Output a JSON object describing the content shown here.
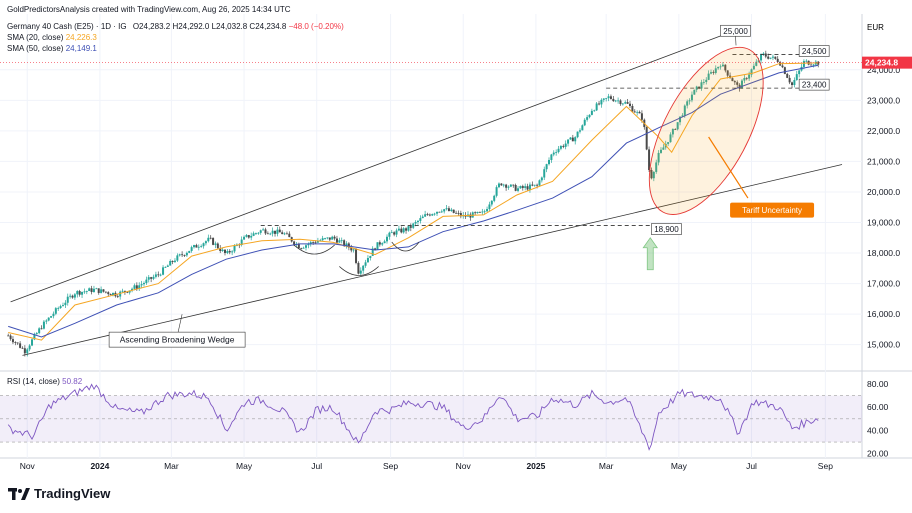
{
  "header": {
    "creator": "GoldPredictorsAnalysis created with TradingView.com, Aug 26, 2025 14:34 UTC",
    "instrument": "Germany 40 Cash (E25) · 1D · IG",
    "ohlc": {
      "o": "O24,283.2",
      "h": "H24,292.0",
      "l": "L24,032.8",
      "c": "C24,234.8",
      "chg": "−48.0 (−0.20%)"
    },
    "sma20_label": "SMA (20, close)",
    "sma20_value": "24,226.3",
    "sma50_label": "SMA (50, close)",
    "sma50_value": "24,149.1"
  },
  "currency": "EUR",
  "last_price_label": "24,234.8",
  "brand": "TradingView",
  "colors": {
    "up": "#26a69a",
    "down": "#4a4a4a",
    "sma20": "#f5a623",
    "sma50": "#3f51b5",
    "rsi": "#7e57c2",
    "accent": "#f57c00",
    "last": "#f23645"
  },
  "chart_data": [
    {
      "type": "line",
      "title": "Germany 40 Cash (E25) · 1D · IG",
      "x_tick_labels": [
        "Nov",
        "2024",
        "Mar",
        "May",
        "Jul",
        "Sep",
        "Nov",
        "2025",
        "Mar",
        "May",
        "Jul",
        "Sep"
      ],
      "x_range": [
        "2023-10-15",
        "2025-09-20"
      ],
      "ylim": [
        14400,
        25500
      ],
      "y_tick_labels": [
        "15,000.0",
        "16,000.0",
        "17,000.0",
        "18,000.0",
        "19,000.0",
        "20,000.0",
        "21,000.0",
        "22,000.0",
        "23,000.0",
        "24,000.0"
      ],
      "y_ticks": [
        15000,
        16000,
        17000,
        18000,
        19000,
        20000,
        21000,
        22000,
        23000,
        24000
      ],
      "series": [
        {
          "name": "Germany 40 Cash (E25)",
          "x": [
            "2023-10-16",
            "2023-10-30",
            "2023-11-13",
            "2023-11-27",
            "2023-12-11",
            "2023-12-27",
            "2024-01-15",
            "2024-02-01",
            "2024-02-19",
            "2024-03-04",
            "2024-03-18",
            "2024-04-02",
            "2024-04-16",
            "2024-05-02",
            "2024-05-16",
            "2024-06-03",
            "2024-06-17",
            "2024-07-01",
            "2024-07-15",
            "2024-08-01",
            "2024-08-05",
            "2024-08-19",
            "2024-09-02",
            "2024-09-16",
            "2024-10-01",
            "2024-10-15",
            "2024-11-01",
            "2024-11-18",
            "2024-12-02",
            "2024-12-16",
            "2025-01-02",
            "2025-01-15",
            "2025-02-03",
            "2025-02-17",
            "2025-03-03",
            "2025-03-18",
            "2025-04-01",
            "2025-04-07",
            "2025-04-14",
            "2025-04-25",
            "2025-05-12",
            "2025-05-26",
            "2025-06-05",
            "2025-06-20",
            "2025-07-03",
            "2025-07-10",
            "2025-07-24",
            "2025-08-04",
            "2025-08-14",
            "2025-08-26"
          ],
          "values": [
            15300,
            14800,
            15600,
            16200,
            16700,
            16800,
            16650,
            16900,
            17300,
            17800,
            18150,
            18450,
            17950,
            18500,
            18750,
            18650,
            18200,
            18400,
            18500,
            18100,
            17400,
            18200,
            18650,
            18800,
            19250,
            19450,
            19200,
            19300,
            20300,
            20100,
            20200,
            21300,
            21800,
            22700,
            23100,
            22900,
            22400,
            20400,
            21200,
            21900,
            23200,
            23800,
            24200,
            23400,
            24100,
            24500,
            24300,
            23500,
            24250,
            24235
          ]
        },
        {
          "name": "SMA (20, close)",
          "x": [
            "2023-10-16",
            "2023-11-13",
            "2023-12-11",
            "2024-01-15",
            "2024-02-19",
            "2024-03-18",
            "2024-04-16",
            "2024-05-16",
            "2024-06-17",
            "2024-07-15",
            "2024-08-19",
            "2024-09-16",
            "2024-10-15",
            "2024-11-18",
            "2024-12-16",
            "2025-01-15",
            "2025-02-17",
            "2025-03-18",
            "2025-04-14",
            "2025-04-25",
            "2025-05-12",
            "2025-06-05",
            "2025-07-03",
            "2025-07-24",
            "2025-08-26"
          ],
          "values": [
            15400,
            15150,
            16300,
            16650,
            17000,
            17900,
            18200,
            18400,
            18450,
            18350,
            17950,
            18500,
            19200,
            19250,
            19900,
            20350,
            21700,
            22800,
            21800,
            21300,
            22500,
            23700,
            23900,
            24200,
            24226
          ]
        },
        {
          "name": "SMA (50, close)",
          "x": [
            "2023-10-16",
            "2023-11-13",
            "2023-12-11",
            "2024-01-15",
            "2024-02-19",
            "2024-03-18",
            "2024-04-16",
            "2024-05-16",
            "2024-06-17",
            "2024-07-15",
            "2024-08-19",
            "2024-09-16",
            "2024-10-15",
            "2024-11-18",
            "2024-12-16",
            "2025-01-15",
            "2025-02-17",
            "2025-03-18",
            "2025-04-14",
            "2025-05-12",
            "2025-06-05",
            "2025-07-03",
            "2025-07-24",
            "2025-08-26"
          ],
          "values": [
            15600,
            15250,
            15700,
            16300,
            16700,
            17300,
            17800,
            18100,
            18300,
            18300,
            18100,
            18200,
            18700,
            19050,
            19400,
            19800,
            20500,
            21600,
            22100,
            22600,
            23200,
            23600,
            23900,
            24149
          ]
        }
      ],
      "levels": [
        {
          "label": "25,000",
          "value": 25000
        },
        {
          "label": "24,500",
          "value": 24500
        },
        {
          "label": "23,400",
          "value": 23400
        },
        {
          "label": "18,900",
          "value": 18900
        }
      ],
      "annotations": [
        "Ascending Broadening Wedge",
        "Tariff Uncertainty"
      ],
      "legend": "top-left"
    },
    {
      "type": "line",
      "title": "RSI (14, close)",
      "value_label": "50.82",
      "ylim": [
        18,
        86
      ],
      "y_tick_labels": [
        "80.00",
        "60.00",
        "40.00",
        "20.00"
      ],
      "y_ticks": [
        80,
        60,
        40,
        20
      ],
      "band": [
        30,
        70
      ],
      "series": [
        {
          "name": "RSI (14, close)",
          "x": [
            "2023-10-16",
            "2023-11-06",
            "2023-11-20",
            "2023-12-11",
            "2023-12-27",
            "2024-01-15",
            "2024-02-05",
            "2024-02-26",
            "2024-03-18",
            "2024-04-02",
            "2024-04-16",
            "2024-05-02",
            "2024-05-16",
            "2024-06-03",
            "2024-06-17",
            "2024-07-01",
            "2024-07-15",
            "2024-08-05",
            "2024-08-19",
            "2024-09-02",
            "2024-09-16",
            "2024-10-01",
            "2024-10-15",
            "2024-11-01",
            "2024-11-18",
            "2024-12-02",
            "2024-12-16",
            "2025-01-02",
            "2025-01-15",
            "2025-02-03",
            "2025-02-17",
            "2025-03-03",
            "2025-03-18",
            "2025-04-07",
            "2025-04-14",
            "2025-05-02",
            "2025-05-16",
            "2025-06-05",
            "2025-06-20",
            "2025-07-03",
            "2025-07-24",
            "2025-08-04",
            "2025-08-26"
          ],
          "values": [
            42,
            35,
            62,
            72,
            79,
            58,
            55,
            70,
            72,
            68,
            40,
            65,
            66,
            56,
            38,
            58,
            60,
            28,
            57,
            58,
            64,
            63,
            60,
            42,
            50,
            72,
            50,
            52,
            68,
            62,
            71,
            64,
            68,
            24,
            55,
            72,
            70,
            68,
            38,
            65,
            60,
            42,
            51
          ]
        }
      ]
    }
  ]
}
